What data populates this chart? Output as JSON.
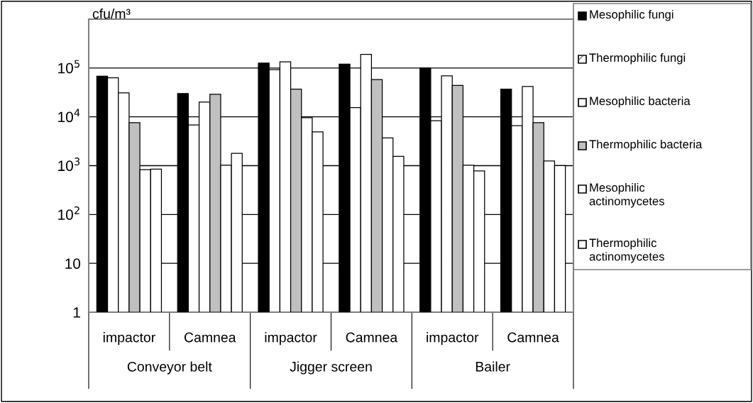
{
  "chart_data": {
    "type": "bar",
    "ylabel": "cfu/m³",
    "categories": [
      "impactor",
      "Camnea",
      "impactor",
      "Camnea",
      "impactor",
      "Camnea"
    ],
    "annotations": [
      "Conveyor belt",
      "Jigger screen",
      "Bailer"
    ],
    "series": [
      {
        "name": "Mesophilic fungi",
        "color": "#000000",
        "values": [
          68000,
          30000,
          126000,
          120000,
          100000,
          37000
        ]
      },
      {
        "name": "Thermophilic fungi",
        "color": "#ffffff",
        "values": [
          63000,
          6800,
          93000,
          15500,
          8300,
          6600
        ]
      },
      {
        "name": "Mesophilic bacteria",
        "color": "#ffffff",
        "values": [
          31000,
          20000,
          134000,
          190000,
          69000,
          42000
        ]
      },
      {
        "name": "Thermophilic bacteria",
        "color": "#c0c0c0",
        "values": [
          7600,
          29000,
          37000,
          58000,
          44000,
          7600
        ]
      },
      {
        "name": "Mesophilic\nactinomycetes",
        "color": "#ffffff",
        "values": [
          830,
          1020,
          9600,
          3700,
          1020,
          1250
        ]
      },
      {
        "name": "Thermophilic\nactinomycetes",
        "color": "#ffffff",
        "values": [
          850,
          1780,
          4900,
          1550,
          780,
          1000
        ]
      }
    ],
    "log": "y",
    "ylim": [
      1,
      1000000
    ],
    "yticks": [
      1,
      10,
      {
        "value": 100,
        "label": "10$^{2}$"
      },
      {
        "value": 1000,
        "label": "10$^{3}$"
      },
      {
        "value": 10000,
        "label": "10$^{4}$"
      },
      {
        "value": 100000,
        "label": "10$^{5}$"
      },
      {
        "value": 1000000,
        "label": null
      }
    ],
    "grid": "y",
    "legend": "top right"
  }
}
